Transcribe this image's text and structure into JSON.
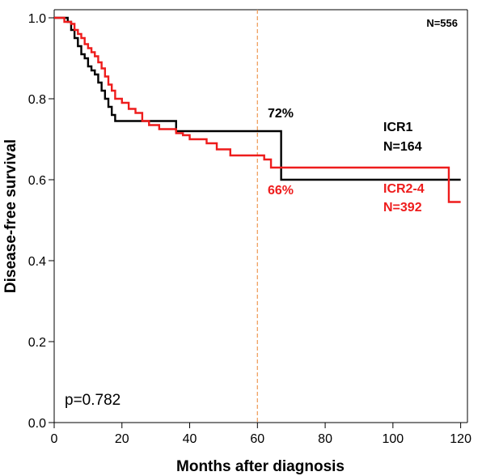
{
  "chart_data": {
    "type": "line",
    "subtype": "kaplan-meier-step",
    "xlabel": "Months after diagnosis",
    "ylabel": "Disease-free survival",
    "xlim": [
      0,
      122
    ],
    "ylim": [
      0,
      1.02
    ],
    "xticks": [
      0,
      20,
      40,
      60,
      80,
      100,
      120
    ],
    "yticks": [
      0.0,
      0.2,
      0.4,
      0.6,
      0.8,
      1.0
    ],
    "ytick_labels": [
      "0.0",
      "0.2",
      "0.4",
      "0.6",
      "0.8",
      "1.0"
    ],
    "grid": false,
    "reference_line": {
      "x": 60,
      "color": "#f0a060",
      "style": "dashed"
    },
    "total_label": "N=556",
    "pvalue_label": "p=0.782",
    "series": [
      {
        "name": "ICR1",
        "n_label": "N=164",
        "color": "#000000",
        "pct_label": "72%",
        "points": [
          [
            0,
            1.0
          ],
          [
            4,
            0.99
          ],
          [
            5,
            0.97
          ],
          [
            6,
            0.95
          ],
          [
            7,
            0.93
          ],
          [
            8,
            0.91
          ],
          [
            9,
            0.9
          ],
          [
            10,
            0.88
          ],
          [
            11,
            0.87
          ],
          [
            12,
            0.86
          ],
          [
            13,
            0.84
          ],
          [
            14,
            0.82
          ],
          [
            15,
            0.8
          ],
          [
            16,
            0.78
          ],
          [
            17,
            0.76
          ],
          [
            18,
            0.745
          ],
          [
            36,
            0.72
          ],
          [
            67,
            0.6
          ],
          [
            120,
            0.6
          ]
        ]
      },
      {
        "name": "ICR2-4",
        "n_label": "N=392",
        "color": "#ee1c1c",
        "pct_label": "66%",
        "points": [
          [
            0,
            1.0
          ],
          [
            3,
            0.99
          ],
          [
            5,
            0.985
          ],
          [
            6,
            0.97
          ],
          [
            7,
            0.96
          ],
          [
            8,
            0.95
          ],
          [
            9,
            0.935
          ],
          [
            10,
            0.925
          ],
          [
            11,
            0.915
          ],
          [
            12,
            0.905
          ],
          [
            13,
            0.89
          ],
          [
            14,
            0.875
          ],
          [
            15,
            0.855
          ],
          [
            16,
            0.835
          ],
          [
            17,
            0.82
          ],
          [
            18,
            0.8
          ],
          [
            20,
            0.79
          ],
          [
            22,
            0.775
          ],
          [
            24,
            0.765
          ],
          [
            26,
            0.745
          ],
          [
            28,
            0.735
          ],
          [
            31,
            0.725
          ],
          [
            36,
            0.715
          ],
          [
            38,
            0.71
          ],
          [
            40,
            0.7
          ],
          [
            45,
            0.69
          ],
          [
            48,
            0.675
          ],
          [
            52,
            0.66
          ],
          [
            62,
            0.65
          ],
          [
            64,
            0.63
          ],
          [
            116,
            0.63
          ],
          [
            116.5,
            0.545
          ],
          [
            120,
            0.545
          ]
        ]
      }
    ]
  }
}
